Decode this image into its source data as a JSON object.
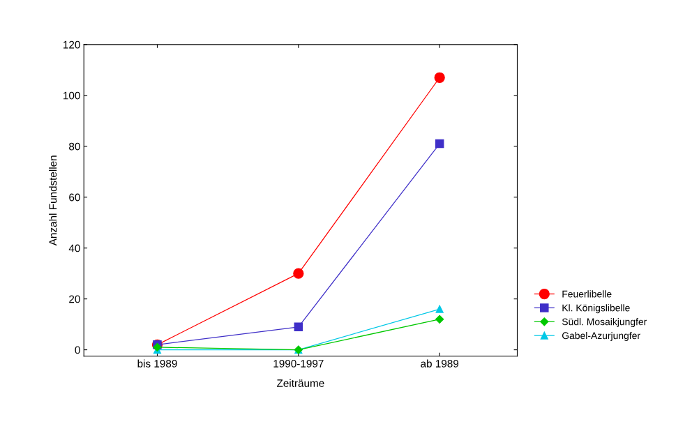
{
  "chart_data": {
    "type": "line",
    "xlabel": "Zeiträume",
    "ylabel": "Anzahl Fundstellen",
    "categories": [
      "bis 1989",
      "1990-1997",
      "ab 1989"
    ],
    "series": [
      {
        "name": "Feuerlibelle",
        "color": "#ff0000",
        "marker": "circle",
        "values": [
          2,
          30,
          107
        ]
      },
      {
        "name": "Kl. Königslibelle",
        "color": "#3f2fc8",
        "marker": "square",
        "values": [
          2,
          9,
          81
        ]
      },
      {
        "name": "Südl. Mosaikjungfer",
        "color": "#00c800",
        "marker": "diamond",
        "values": [
          1,
          0,
          12
        ]
      },
      {
        "name": "Gabel-Azurjungfer",
        "color": "#00c8e6",
        "marker": "triangle",
        "values": [
          0,
          0,
          16
        ]
      }
    ],
    "ylim": [
      -2.5,
      120
    ],
    "yticks": [
      0,
      20,
      40,
      60,
      80,
      100,
      120
    ],
    "grid": false,
    "legend": "right",
    "line_style": "solid"
  }
}
